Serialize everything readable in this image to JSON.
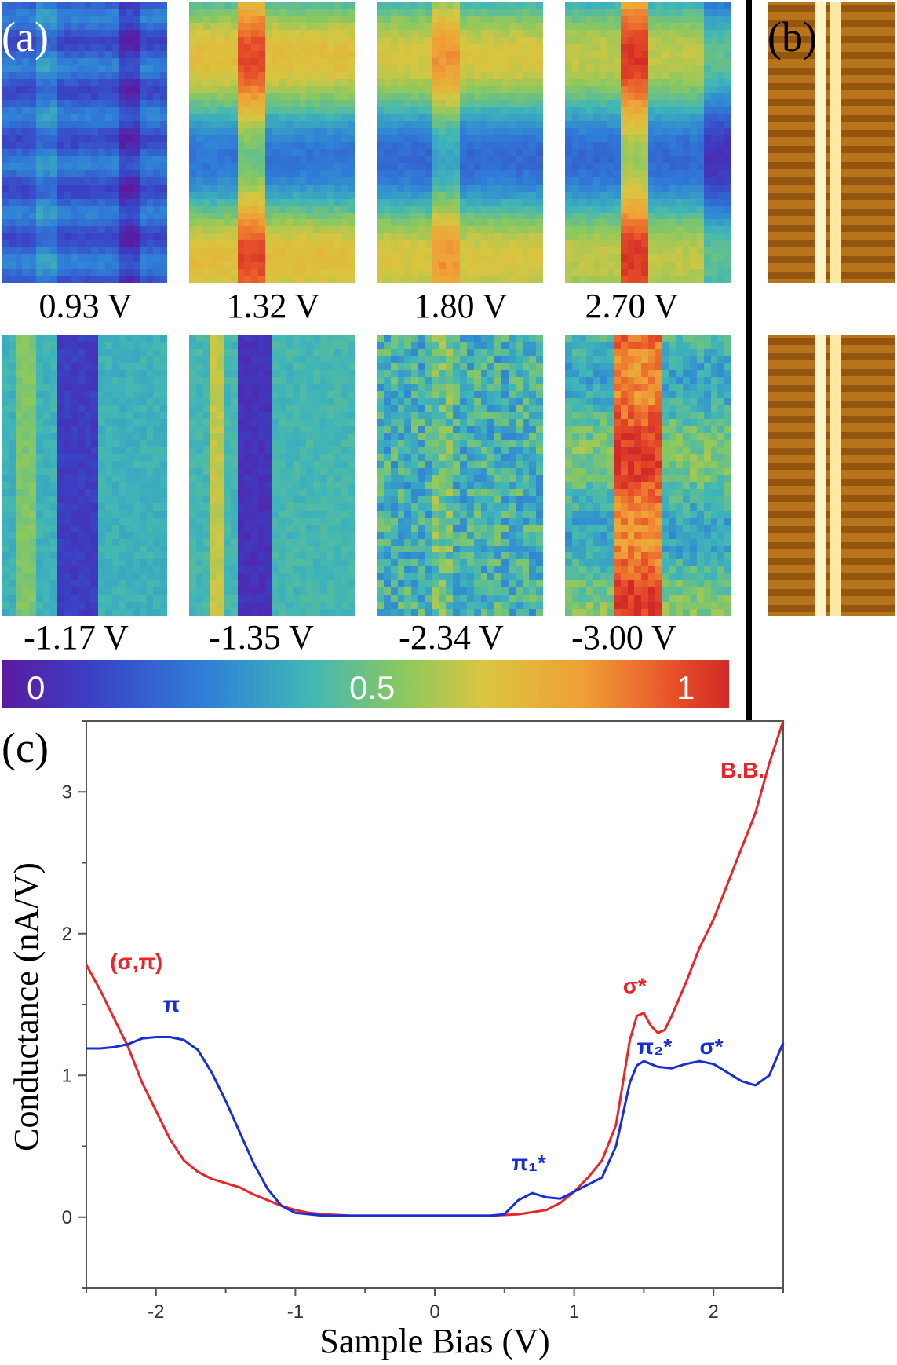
{
  "panels": {
    "a_label": "(a)",
    "b_label": "(b)",
    "c_label": "(c)"
  },
  "maps_top": [
    {
      "bias": "0.93 V",
      "scheme": "blue"
    },
    {
      "bias": "1.32 V",
      "scheme": "stripes"
    },
    {
      "bias": "1.80 V",
      "scheme": "stripes2"
    },
    {
      "bias": "2.70 V",
      "scheme": "stripes3"
    }
  ],
  "maps_bottom": [
    {
      "bias": "-1.17 V",
      "scheme": "dark-band"
    },
    {
      "bias": "-1.35 V",
      "scheme": "dark-band2"
    },
    {
      "bias": "-2.34 V",
      "scheme": "noisy"
    },
    {
      "bias": "-3.00 V",
      "scheme": "red-band"
    }
  ],
  "colorbar": {
    "min_label": "0",
    "mid_label": "0.5",
    "max_label": "1"
  },
  "chart_data": {
    "type": "line",
    "title": "",
    "xlabel": "Sample Bias (V)",
    "ylabel": "Conductance (nA/V)",
    "xlim": [
      -2.5,
      2.5
    ],
    "ylim": [
      -0.5,
      3.5
    ],
    "xticks": [
      "-2",
      "-1",
      "0",
      "1",
      "2"
    ],
    "yticks": [
      "0",
      "1",
      "2",
      "3"
    ],
    "series": [
      {
        "name": "red",
        "color": "#e8262a",
        "x": [
          -2.5,
          -2.4,
          -2.3,
          -2.2,
          -2.1,
          -2.0,
          -1.9,
          -1.8,
          -1.7,
          -1.6,
          -1.5,
          -1.4,
          -1.3,
          -1.2,
          -1.1,
          -1.0,
          -0.9,
          -0.8,
          -0.6,
          -0.4,
          -0.2,
          0.0,
          0.2,
          0.4,
          0.6,
          0.8,
          0.9,
          1.0,
          1.1,
          1.2,
          1.3,
          1.35,
          1.4,
          1.45,
          1.5,
          1.55,
          1.6,
          1.65,
          1.7,
          1.8,
          1.9,
          2.0,
          2.1,
          2.2,
          2.3,
          2.4,
          2.5
        ],
        "y": [
          1.78,
          1.6,
          1.4,
          1.2,
          0.95,
          0.75,
          0.55,
          0.4,
          0.32,
          0.27,
          0.24,
          0.21,
          0.16,
          0.12,
          0.08,
          0.05,
          0.03,
          0.02,
          0.01,
          0.01,
          0.01,
          0.01,
          0.01,
          0.01,
          0.02,
          0.05,
          0.1,
          0.18,
          0.28,
          0.4,
          0.65,
          0.95,
          1.25,
          1.42,
          1.44,
          1.35,
          1.3,
          1.32,
          1.42,
          1.65,
          1.9,
          2.1,
          2.35,
          2.6,
          2.85,
          3.2,
          3.5
        ]
      },
      {
        "name": "blue",
        "color": "#1a2ed6",
        "x": [
          -2.5,
          -2.4,
          -2.3,
          -2.2,
          -2.1,
          -2.0,
          -1.9,
          -1.8,
          -1.7,
          -1.6,
          -1.5,
          -1.4,
          -1.3,
          -1.2,
          -1.1,
          -1.0,
          -0.9,
          -0.8,
          -0.6,
          -0.4,
          -0.2,
          0.0,
          0.2,
          0.4,
          0.5,
          0.6,
          0.7,
          0.8,
          0.9,
          1.0,
          1.1,
          1.2,
          1.3,
          1.4,
          1.45,
          1.5,
          1.6,
          1.7,
          1.8,
          1.9,
          2.0,
          2.1,
          2.2,
          2.3,
          2.4,
          2.5
        ],
        "y": [
          1.19,
          1.19,
          1.2,
          1.22,
          1.26,
          1.27,
          1.27,
          1.25,
          1.18,
          1.02,
          0.82,
          0.6,
          0.38,
          0.2,
          0.08,
          0.03,
          0.02,
          0.01,
          0.01,
          0.01,
          0.01,
          0.01,
          0.01,
          0.01,
          0.02,
          0.12,
          0.17,
          0.14,
          0.13,
          0.18,
          0.23,
          0.28,
          0.5,
          0.95,
          1.07,
          1.1,
          1.06,
          1.05,
          1.08,
          1.1,
          1.08,
          1.02,
          0.96,
          0.93,
          1.0,
          1.23
        ]
      }
    ],
    "annotations": [
      {
        "text": "B.B.",
        "color": "#e8262a",
        "x": 2.05,
        "y": 3.1
      },
      {
        "text": "(σ,π)",
        "color": "#e8262a",
        "x": -2.33,
        "y": 1.75
      },
      {
        "text": "π",
        "color": "#1a2ed6",
        "x": -1.95,
        "y": 1.45
      },
      {
        "text": "σ*",
        "color": "#e8262a",
        "x": 1.35,
        "y": 1.58
      },
      {
        "text": "π₂*",
        "color": "#1a2ed6",
        "x": 1.45,
        "y": 1.15
      },
      {
        "text": "σ*",
        "color": "#1a2ed6",
        "x": 1.9,
        "y": 1.15
      },
      {
        "text": "π₁*",
        "color": "#1a2ed6",
        "x": 0.55,
        "y": 0.33
      }
    ]
  }
}
